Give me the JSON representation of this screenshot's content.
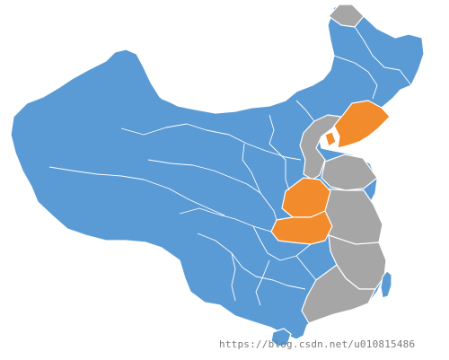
{
  "colors": {
    "default": "#5b9bd5",
    "highlight": "#f28b2c",
    "gray": "#a6a6a6",
    "border": "#ffffff",
    "background": "#ffffff"
  },
  "regions": [
    {
      "name": "mainland-china",
      "category": "default"
    },
    {
      "name": "taiwan",
      "category": "default"
    },
    {
      "name": "hainan",
      "category": "default"
    },
    {
      "name": "liaoning",
      "category": "highlight"
    },
    {
      "name": "tianjin",
      "category": "highlight"
    },
    {
      "name": "henan",
      "category": "highlight"
    },
    {
      "name": "hubei",
      "category": "highlight"
    },
    {
      "name": "beijing-hebei",
      "category": "gray"
    },
    {
      "name": "shandong",
      "category": "gray"
    },
    {
      "name": "east-coast",
      "category": "gray"
    },
    {
      "name": "jiangxi-fujian",
      "category": "gray"
    },
    {
      "name": "guangdong",
      "category": "gray"
    },
    {
      "name": "northeast-corner",
      "category": "gray"
    }
  ],
  "watermark": {
    "text": "https://blog.csdn.net/u010815486"
  }
}
